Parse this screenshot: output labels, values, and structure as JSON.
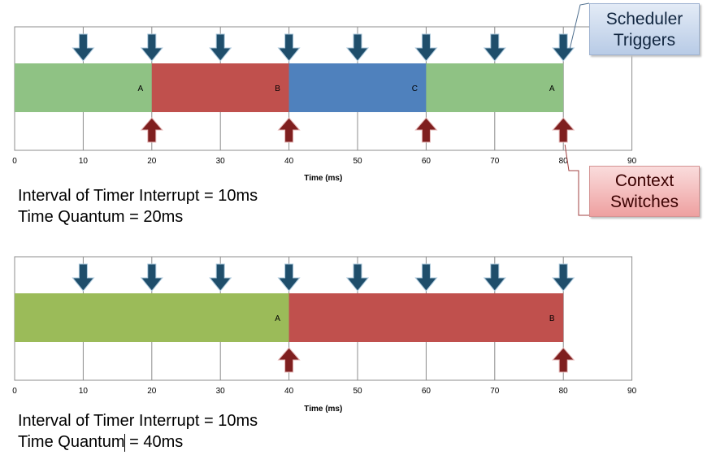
{
  "charts": [
    {
      "x_ticks": [
        0,
        10,
        20,
        30,
        40,
        50,
        60,
        70,
        80,
        90
      ],
      "x_label": "Time (ms)",
      "segments": [
        {
          "start": 0,
          "end": 20,
          "label": "A",
          "color": "#8fc284"
        },
        {
          "start": 20,
          "end": 40,
          "label": "B",
          "color": "#c0504d"
        },
        {
          "start": 40,
          "end": 60,
          "label": "C",
          "color": "#4f81bd"
        },
        {
          "start": 60,
          "end": 80,
          "label": "A",
          "color": "#8fc284"
        }
      ],
      "scheduler_triggers": [
        10,
        20,
        30,
        40,
        50,
        60,
        70,
        80
      ],
      "context_switches": [
        20,
        40,
        60,
        80
      ]
    },
    {
      "x_ticks": [
        0,
        10,
        20,
        30,
        40,
        50,
        60,
        70,
        80,
        90
      ],
      "x_label": "Time (ms)",
      "segments": [
        {
          "start": 0,
          "end": 40,
          "label": "A",
          "color": "#9bbb59"
        },
        {
          "start": 40,
          "end": 80,
          "label": "B",
          "color": "#c0504d"
        }
      ],
      "scheduler_triggers": [
        10,
        20,
        30,
        40,
        50,
        60,
        70,
        80
      ],
      "context_switches": [
        40,
        80
      ]
    }
  ],
  "captions": {
    "top_line1": "Interval of Timer Interrupt = 10ms",
    "top_line2": "Time Quantum = 20ms",
    "bottom_line1": "Interval of Timer Interrupt = 10ms",
    "bottom_line2": "Time Quantum = 40ms"
  },
  "callouts": {
    "scheduler": "Scheduler\nTriggers",
    "context": "Context\nSwitches"
  },
  "colors": {
    "trigger_arrow": "#1f4e6b",
    "switch_arrow": "#7f1f1f"
  }
}
